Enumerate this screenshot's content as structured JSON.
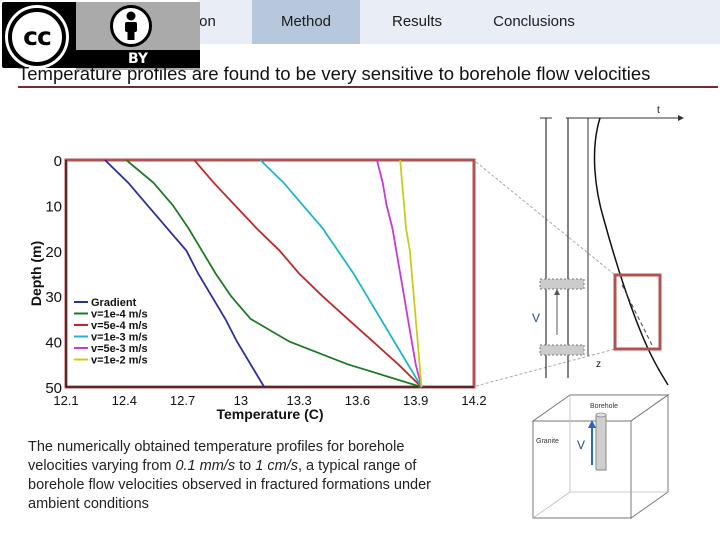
{
  "nav": {
    "tabs": [
      {
        "label": "ction"
      },
      {
        "label": "Method"
      },
      {
        "label": "Results"
      },
      {
        "label": "Conclusions"
      }
    ],
    "active_tab": "Method"
  },
  "license_badge": {
    "left_text": "cc",
    "right_text": "BY",
    "icon": "person-icon"
  },
  "headline": "Temperature profiles are found to be very sensitive to borehole flow velocities",
  "caption": {
    "part1": "The numerically obtained temperature profiles for borehole velocities varying from ",
    "em1": "0.1 mm/s",
    "part2": " to ",
    "em2": "1 cm/s",
    "part3": ", a typical range of borehole flow velocities observed in fractured formations under ambient conditions"
  },
  "chart_data": {
    "type": "line",
    "xlabel": "Temperature (C)",
    "ylabel": "Depth (m)",
    "xlim": [
      12.1,
      14.2
    ],
    "ylim": [
      0,
      50
    ],
    "x_ticks": [
      "12.1",
      "12.4",
      "12.7",
      "13",
      "13.3",
      "13.6",
      "13.9",
      "14.2"
    ],
    "y_ticks": [
      "0",
      "10",
      "20",
      "30",
      "40",
      "50"
    ],
    "y_inverted": true,
    "legend_position": "bottom-left",
    "series": [
      {
        "name": "Gradient",
        "color": "#2b2f9c",
        "points": [
          [
            12.3,
            0
          ],
          [
            12.42,
            5
          ],
          [
            12.52,
            10
          ],
          [
            12.62,
            15
          ],
          [
            12.72,
            20
          ],
          [
            12.78,
            25
          ],
          [
            12.85,
            30
          ],
          [
            12.92,
            35
          ],
          [
            12.98,
            40
          ],
          [
            13.05,
            45
          ],
          [
            13.12,
            50
          ]
        ]
      },
      {
        "name": "v=1e-4 m/s",
        "color": "#1e7a25",
        "points": [
          [
            12.41,
            0
          ],
          [
            12.55,
            5
          ],
          [
            12.65,
            10
          ],
          [
            12.73,
            15
          ],
          [
            12.8,
            20
          ],
          [
            12.87,
            25
          ],
          [
            12.95,
            30
          ],
          [
            13.05,
            35
          ],
          [
            13.25,
            40
          ],
          [
            13.55,
            45
          ],
          [
            13.93,
            50
          ]
        ]
      },
      {
        "name": "v=5e-4 m/s",
        "color": "#c0282a",
        "points": [
          [
            12.76,
            0
          ],
          [
            12.86,
            5
          ],
          [
            12.97,
            10
          ],
          [
            13.08,
            15
          ],
          [
            13.2,
            20
          ],
          [
            13.3,
            25
          ],
          [
            13.42,
            30
          ],
          [
            13.55,
            35
          ],
          [
            13.68,
            40
          ],
          [
            13.81,
            45
          ],
          [
            13.93,
            50
          ]
        ]
      },
      {
        "name": "v=1e-3 m/s",
        "color": "#1fb5c9",
        "points": [
          [
            13.1,
            0
          ],
          [
            13.22,
            5
          ],
          [
            13.32,
            10
          ],
          [
            13.42,
            15
          ],
          [
            13.5,
            20
          ],
          [
            13.58,
            25
          ],
          [
            13.65,
            30
          ],
          [
            13.72,
            35
          ],
          [
            13.79,
            40
          ],
          [
            13.86,
            45
          ],
          [
            13.93,
            50
          ]
        ]
      },
      {
        "name": "v=5e-3 m/s",
        "color": "#c43bd6",
        "points": [
          [
            13.7,
            0
          ],
          [
            13.73,
            5
          ],
          [
            13.75,
            10
          ],
          [
            13.78,
            15
          ],
          [
            13.8,
            20
          ],
          [
            13.82,
            25
          ],
          [
            13.84,
            30
          ],
          [
            13.86,
            35
          ],
          [
            13.88,
            40
          ],
          [
            13.9,
            45
          ],
          [
            13.93,
            50
          ]
        ]
      },
      {
        "name": "v=1e-2 m/s",
        "color": "#c9cc1a",
        "points": [
          [
            13.82,
            0
          ],
          [
            13.83,
            5
          ],
          [
            13.84,
            10
          ],
          [
            13.85,
            15
          ],
          [
            13.87,
            20
          ],
          [
            13.88,
            25
          ],
          [
            13.89,
            30
          ],
          [
            13.9,
            35
          ],
          [
            13.91,
            40
          ],
          [
            13.92,
            45
          ],
          [
            13.93,
            50
          ]
        ]
      }
    ]
  },
  "schematic": {
    "axis_t": "t",
    "axis_z": "z",
    "v_label_upper": "V",
    "v_label_lower": "V",
    "borehole_label": "Borehole",
    "granite_label": "Granite"
  }
}
